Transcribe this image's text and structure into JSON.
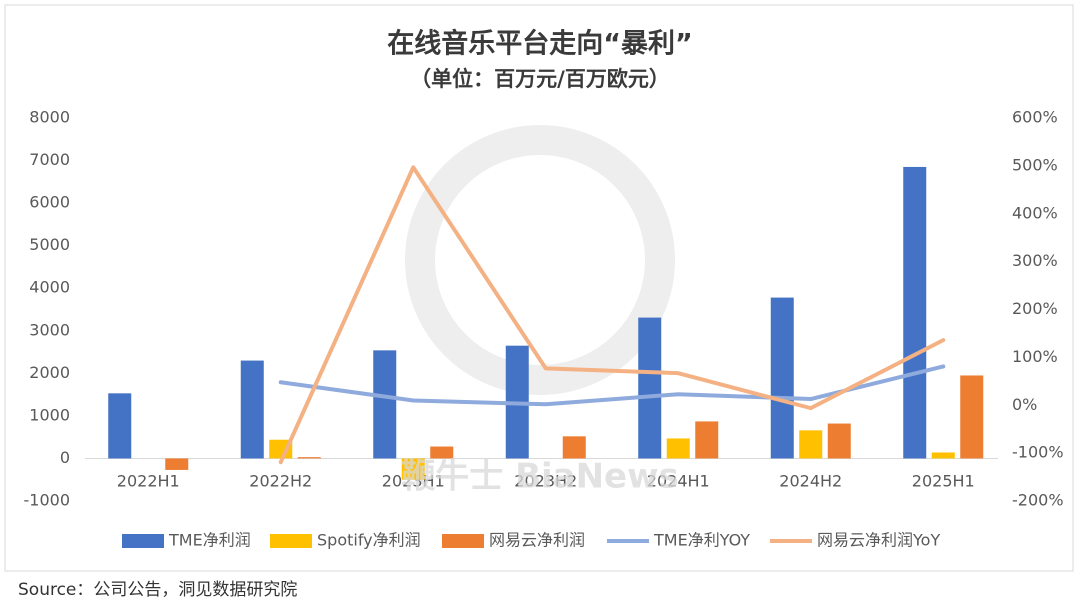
{
  "chart_data": {
    "type": "bar_line",
    "title": "在线音乐平台走向“暴利”",
    "subtitle": "（单位：百万元/百万欧元）",
    "categories": [
      "2022H1",
      "2022H2",
      "2023H1",
      "2023H2",
      "2024H1",
      "2024H2",
      "2025H1"
    ],
    "series": [
      {
        "name": "TME净利润",
        "type": "bar",
        "color": "#4472c4",
        "values": [
          1530,
          2300,
          2540,
          2650,
          3310,
          3780,
          6850
        ]
      },
      {
        "name": "Spotify净利润",
        "type": "bar",
        "color": "#ffc000",
        "values": [
          null,
          440,
          -500,
          null,
          470,
          660,
          140
        ]
      },
      {
        "name": "网易云净利润",
        "type": "bar",
        "color": "#ed7d31",
        "values": [
          -270,
          30,
          280,
          520,
          870,
          820,
          1950
        ]
      },
      {
        "name": "TME净利YOY",
        "type": "line",
        "axis": "y2",
        "color": "#8faadc",
        "values": [
          null,
          48,
          10,
          2,
          23,
          13,
          81
        ]
      },
      {
        "name": "网易云净利润YoY",
        "type": "line",
        "axis": "y2",
        "color": "#f4b183",
        "values": [
          null,
          -119,
          497,
          77,
          67,
          -6,
          136
        ]
      }
    ],
    "ylim": [
      -1000,
      8000
    ],
    "yticks": [
      -1000,
      0,
      1000,
      2000,
      3000,
      4000,
      5000,
      6000,
      7000,
      8000
    ],
    "y2lim": [
      -200,
      600
    ],
    "y2ticks": [
      {
        "value": -200,
        "label": "-200%"
      },
      {
        "value": -100,
        "label": "-100%"
      },
      {
        "value": 0,
        "label": "0%"
      },
      {
        "value": 100,
        "label": "100%"
      },
      {
        "value": 200,
        "label": "200%"
      },
      {
        "value": 300,
        "label": "300%"
      },
      {
        "value": 400,
        "label": "400%"
      },
      {
        "value": 500,
        "label": "500%"
      },
      {
        "value": 600,
        "label": "600%"
      }
    ],
    "grid": false,
    "legend": "bottom",
    "watermark": "鞭牛士 BiaNews",
    "source": "Source：公司公告，洞见数据研究院"
  }
}
